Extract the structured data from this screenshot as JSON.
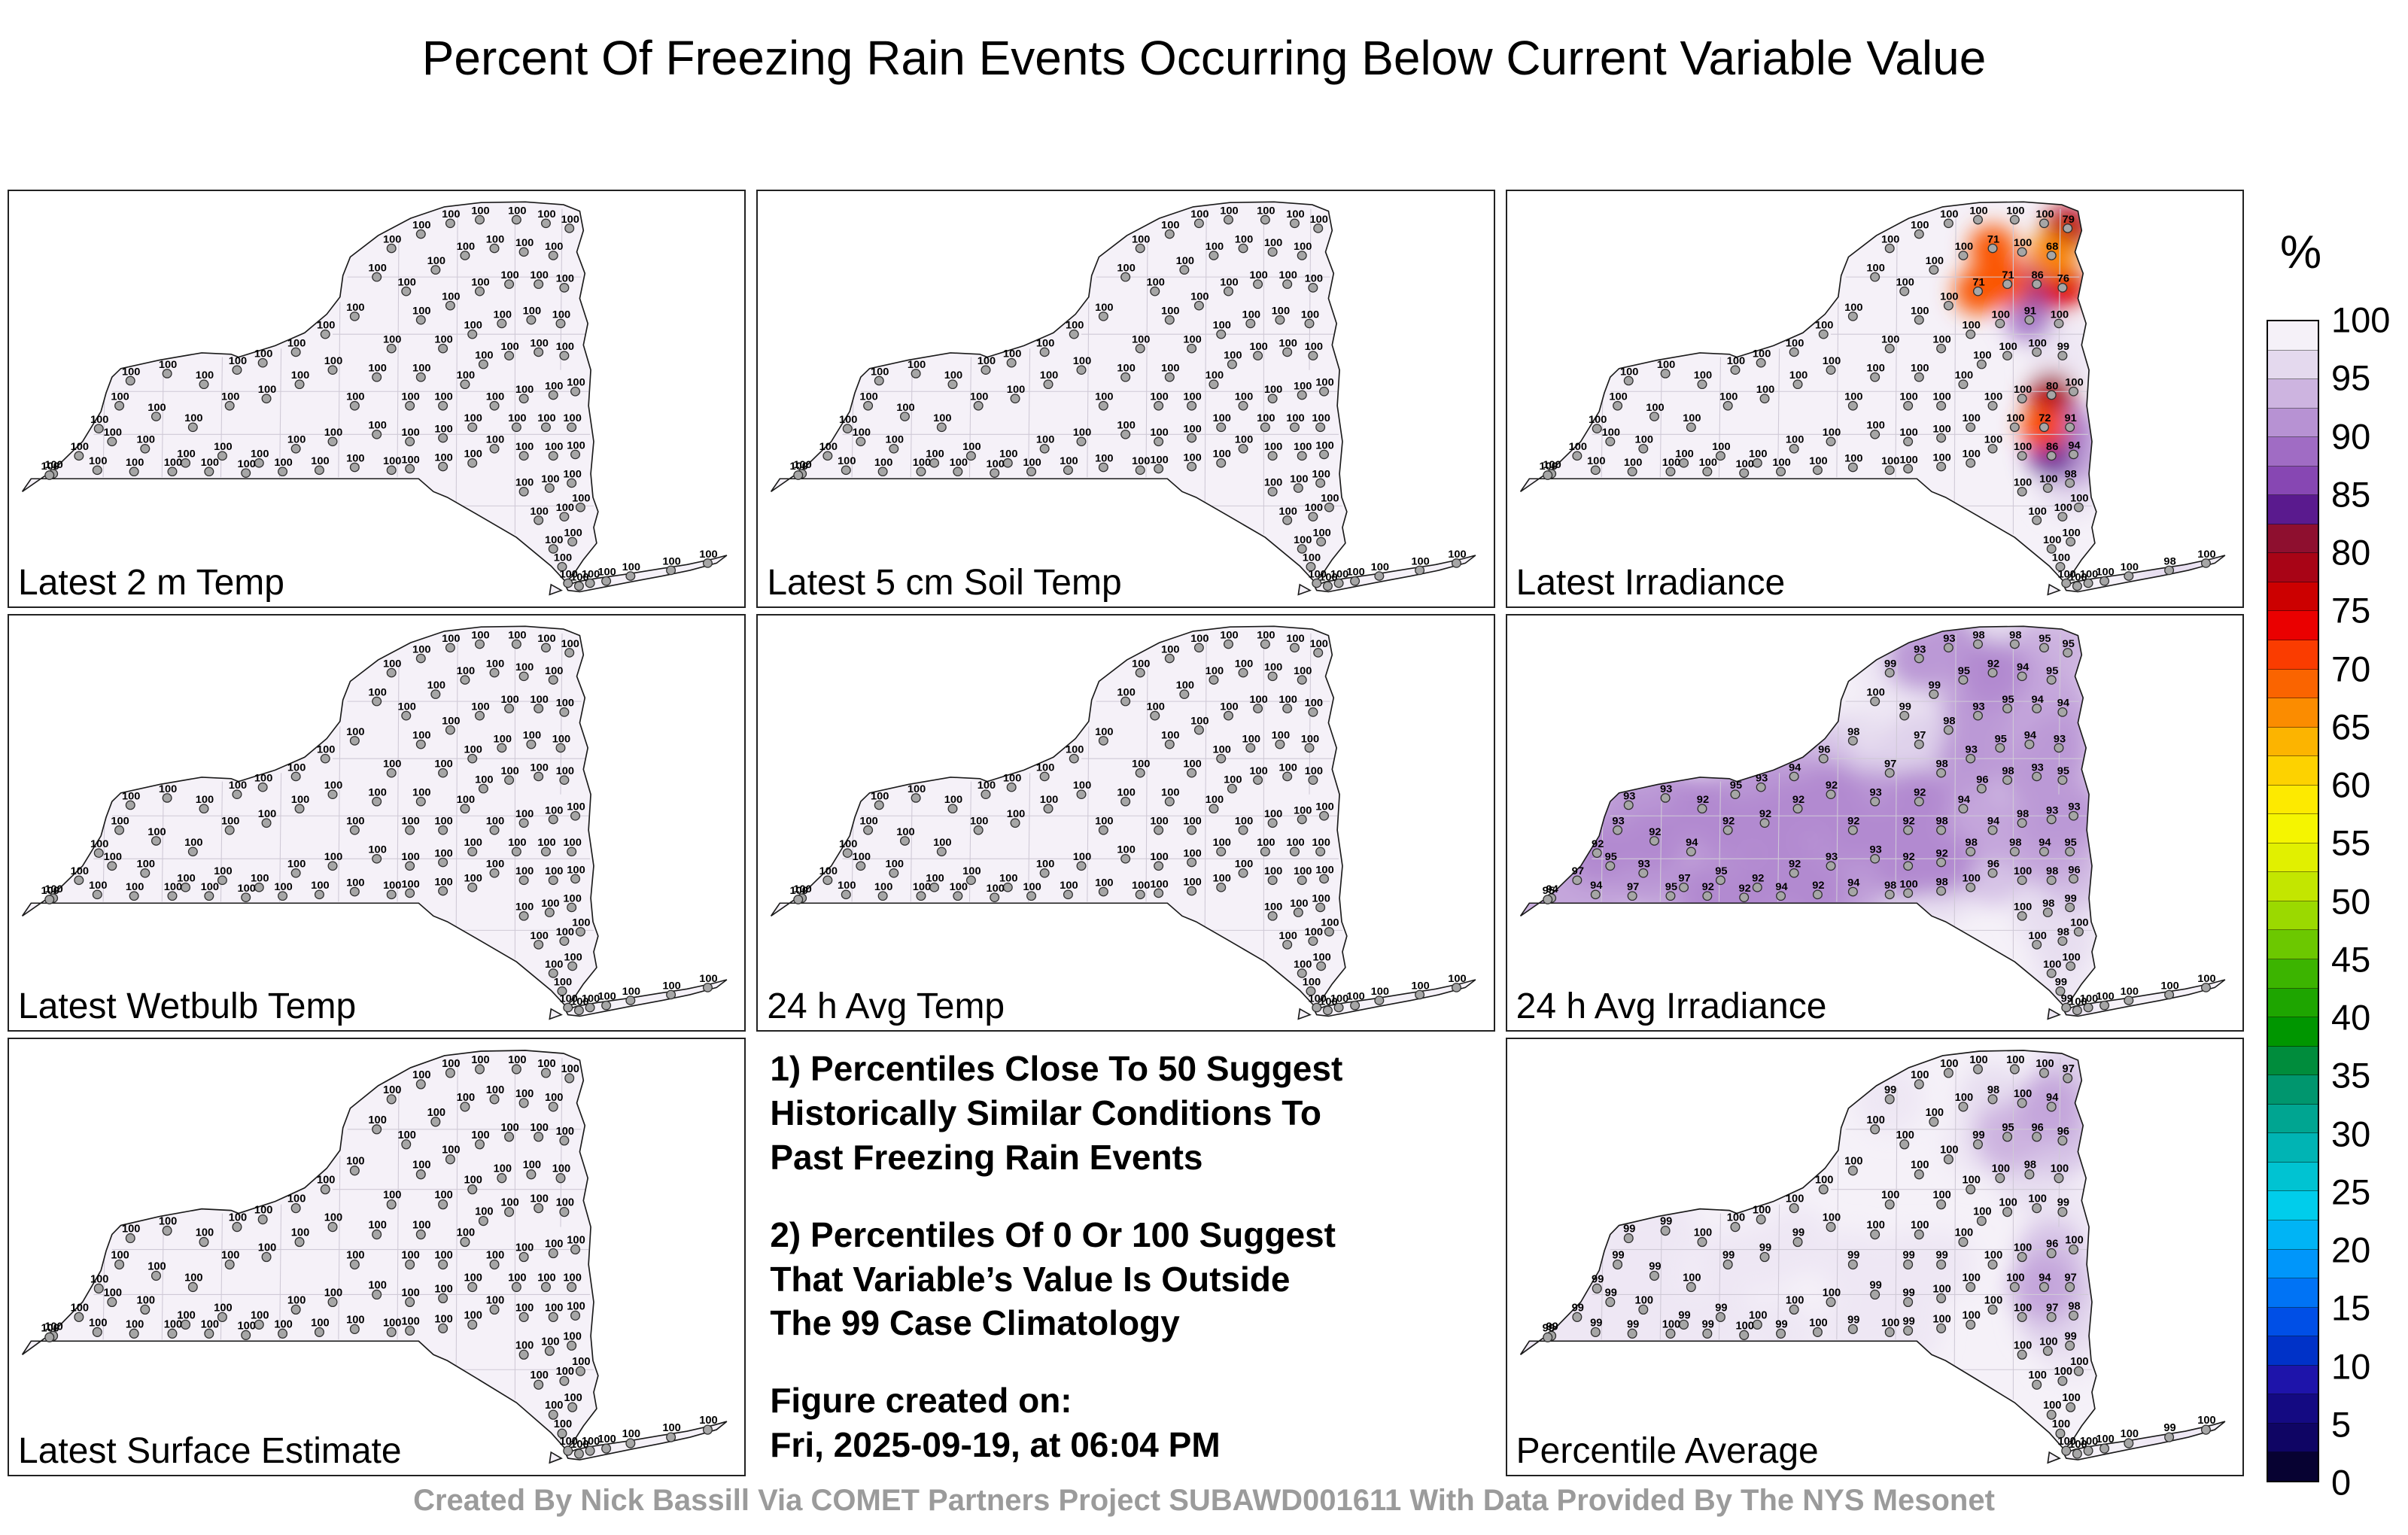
{
  "title": "Percent Of Freezing Rain Events Occurring Below Current Variable Value",
  "footer": "Created By Nick Bassill Via COMET Partners Project SUBAWD001611 With Data Provided By The NYS Mesonet",
  "notes": {
    "note1": "1) Percentiles Close To 50 Suggest\nHistorically Similar Conditions To\nPast Freezing Rain Events",
    "note2": "2) Percentiles Of 0 Or 100 Suggest\nThat Variable’s Value Is Outside\nThe 99 Case Climatology",
    "created": "Figure created on:\nFri, 2025-09-19, at 06:04 PM"
  },
  "colorbar": {
    "unit": "%",
    "ticks": [
      100,
      95,
      90,
      85,
      80,
      75,
      70,
      65,
      60,
      55,
      50,
      45,
      40,
      35,
      30,
      25,
      20,
      15,
      10,
      5,
      0
    ],
    "stops": [
      {
        "v": 100,
        "c": "#f5f1f8"
      },
      {
        "v": 97.5,
        "c": "#e4d9ee"
      },
      {
        "v": 95,
        "c": "#cdb4e0"
      },
      {
        "v": 92.5,
        "c": "#b792d3"
      },
      {
        "v": 90,
        "c": "#a06cc4"
      },
      {
        "v": 87.5,
        "c": "#8747b3"
      },
      {
        "v": 85,
        "c": "#5a1a8e"
      },
      {
        "v": 82.5,
        "c": "#8e0f2f"
      },
      {
        "v": 80,
        "c": "#a80416"
      },
      {
        "v": 77.5,
        "c": "#cc0000"
      },
      {
        "v": 75,
        "c": "#ea0000"
      },
      {
        "v": 72.5,
        "c": "#fa3c00"
      },
      {
        "v": 70,
        "c": "#fa6400"
      },
      {
        "v": 67.5,
        "c": "#fb8c00"
      },
      {
        "v": 65,
        "c": "#fcb400"
      },
      {
        "v": 62.5,
        "c": "#fdd200"
      },
      {
        "v": 60,
        "c": "#fdea00"
      },
      {
        "v": 57.5,
        "c": "#f5f500"
      },
      {
        "v": 55,
        "c": "#e1f000"
      },
      {
        "v": 52.5,
        "c": "#c3e600"
      },
      {
        "v": 50,
        "c": "#9bd900"
      },
      {
        "v": 47.5,
        "c": "#6cc800"
      },
      {
        "v": 45,
        "c": "#3cb400"
      },
      {
        "v": 42.5,
        "c": "#1ea500"
      },
      {
        "v": 40,
        "c": "#009600"
      },
      {
        "v": 37.5,
        "c": "#008c3c"
      },
      {
        "v": 35,
        "c": "#00966e"
      },
      {
        "v": 32.5,
        "c": "#00a591"
      },
      {
        "v": 30,
        "c": "#00b4b4"
      },
      {
        "v": 27.5,
        "c": "#00c3d2"
      },
      {
        "v": 25,
        "c": "#00cdeb"
      },
      {
        "v": 22.5,
        "c": "#00b4f5"
      },
      {
        "v": 20,
        "c": "#0096fa"
      },
      {
        "v": 17.5,
        "c": "#0073f5"
      },
      {
        "v": 15,
        "c": "#004fe6"
      },
      {
        "v": 12.5,
        "c": "#0032c8"
      },
      {
        "v": 10,
        "c": "#1e14aa"
      },
      {
        "v": 7.5,
        "c": "#140a82"
      },
      {
        "v": 5,
        "c": "#0f0564"
      },
      {
        "v": 2.5,
        "c": "#070232"
      },
      {
        "v": 0,
        "c": "#000000"
      }
    ]
  },
  "chart_data": {
    "type": "heatmap",
    "description": "Seven New York State station maps of freezing-rain-event percentiles (values are percent of events below current variable value at each NYS Mesonet station).",
    "stations": [
      [
        60,
        395
      ],
      [
        95,
        370
      ],
      [
        140,
        350
      ],
      [
        185,
        360
      ],
      [
        122,
        332
      ],
      [
        150,
        300
      ],
      [
        200,
        315
      ],
      [
        250,
        330
      ],
      [
        165,
        265
      ],
      [
        215,
        255
      ],
      [
        265,
        270
      ],
      [
        310,
        250
      ],
      [
        300,
        300
      ],
      [
        350,
        290
      ],
      [
        345,
        240
      ],
      [
        390,
        225
      ],
      [
        395,
        270
      ],
      [
        440,
        250
      ],
      [
        430,
        200
      ],
      [
        470,
        175
      ],
      [
        240,
        380
      ],
      [
        290,
        370
      ],
      [
        340,
        380
      ],
      [
        390,
        360
      ],
      [
        440,
        350
      ],
      [
        55,
        397
      ],
      [
        120,
        390
      ],
      [
        170,
        392
      ],
      [
        222,
        392
      ],
      [
        272,
        392
      ],
      [
        322,
        394
      ],
      [
        372,
        392
      ],
      [
        422,
        390
      ],
      [
        470,
        386
      ],
      [
        520,
        390
      ],
      [
        470,
        300
      ],
      [
        500,
        260
      ],
      [
        520,
        220
      ],
      [
        545,
        300
      ],
      [
        560,
        260
      ],
      [
        590,
        300
      ],
      [
        620,
        270
      ],
      [
        500,
        340
      ],
      [
        545,
        350
      ],
      [
        590,
        345
      ],
      [
        630,
        330
      ],
      [
        545,
        388
      ],
      [
        590,
        385
      ],
      [
        630,
        380
      ],
      [
        660,
        360
      ],
      [
        500,
        120
      ],
      [
        520,
        80
      ],
      [
        560,
        60
      ],
      [
        600,
        45
      ],
      [
        640,
        40
      ],
      [
        690,
        40
      ],
      [
        730,
        45
      ],
      [
        762,
        52
      ],
      [
        540,
        140
      ],
      [
        580,
        110
      ],
      [
        620,
        90
      ],
      [
        660,
        80
      ],
      [
        700,
        85
      ],
      [
        740,
        90
      ],
      [
        560,
        180
      ],
      [
        600,
        160
      ],
      [
        640,
        140
      ],
      [
        680,
        130
      ],
      [
        720,
        130
      ],
      [
        755,
        135
      ],
      [
        590,
        220
      ],
      [
        630,
        200
      ],
      [
        670,
        185
      ],
      [
        710,
        180
      ],
      [
        750,
        185
      ],
      [
        645,
        242
      ],
      [
        680,
        230
      ],
      [
        720,
        225
      ],
      [
        755,
        230
      ],
      [
        660,
        300
      ],
      [
        700,
        290
      ],
      [
        740,
        285
      ],
      [
        770,
        280
      ],
      [
        690,
        330
      ],
      [
        730,
        330
      ],
      [
        765,
        330
      ],
      [
        700,
        370
      ],
      [
        740,
        370
      ],
      [
        770,
        368
      ],
      [
        700,
        420
      ],
      [
        735,
        415
      ],
      [
        765,
        408
      ],
      [
        720,
        460
      ],
      [
        755,
        455
      ],
      [
        777,
        442
      ],
      [
        740,
        500
      ],
      [
        766,
        490
      ],
      [
        752,
        525
      ],
      [
        760,
        548
      ],
      [
        775,
        552
      ],
      [
        790,
        548
      ],
      [
        812,
        545
      ],
      [
        845,
        538
      ],
      [
        900,
        530
      ],
      [
        950,
        520
      ]
    ],
    "panels": [
      {
        "label": "Latest 2 m Temp",
        "default": 100,
        "overrides": {}
      },
      {
        "label": "Latest 5 cm Soil Temp",
        "default": 100,
        "overrides": {}
      },
      {
        "label": "Latest Irradiance",
        "default": 100,
        "overrides": {
          "57": 79,
          "61": 71,
          "63": 68,
          "66": 71,
          "67": 71,
          "68": 86,
          "69": 76,
          "73": 91,
          "78": 99,
          "81": 80,
          "84": 72,
          "85": 91,
          "87": 86,
          "88": 94,
          "91": 98,
          "103": 98
        }
      },
      {
        "label": "Latest Wetbulb Temp",
        "default": 100,
        "overrides": {}
      },
      {
        "label": "24 h Avg Temp",
        "default": 100,
        "overrides": {}
      },
      {
        "label": "24 h Avg Irradiance",
        "default": 100,
        "overrides": {
          "0": 94,
          "1": 97,
          "2": 95,
          "3": 93,
          "4": 92,
          "5": 93,
          "6": 92,
          "7": 94,
          "8": 93,
          "9": 93,
          "10": 92,
          "11": 95,
          "12": 92,
          "13": 92,
          "14": 93,
          "15": 94,
          "16": 92,
          "17": 92,
          "18": 96,
          "19": 98,
          "20": 97,
          "21": 95,
          "22": 92,
          "23": 92,
          "24": 93,
          "25": 95,
          "26": 94,
          "27": 97,
          "28": 95,
          "29": 92,
          "30": 92,
          "31": 94,
          "32": 92,
          "33": 94,
          "34": 98,
          "35": 92,
          "36": 93,
          "37": 97,
          "38": 92,
          "39": 92,
          "40": 98,
          "41": 94,
          "42": 93,
          "43": 92,
          "44": 92,
          "45": 98,
          "47": 98,
          "49": 96,
          "51": 99,
          "52": 93,
          "53": 93,
          "54": 98,
          "55": 98,
          "56": 95,
          "57": 95,
          "58": 99,
          "59": 99,
          "60": 95,
          "61": 92,
          "62": 94,
          "63": 95,
          "64": 97,
          "65": 98,
          "66": 93,
          "67": 95,
          "68": 94,
          "69": 94,
          "70": 98,
          "71": 93,
          "72": 95,
          "73": 94,
          "74": 93,
          "75": 96,
          "76": 98,
          "77": 93,
          "78": 95,
          "79": 94,
          "80": 98,
          "81": 93,
          "82": 93,
          "83": 98,
          "84": 94,
          "85": 95,
          "87": 98,
          "88": 96,
          "90": 98,
          "91": 99,
          "93": 98,
          "97": 99,
          "98": 99
        }
      },
      {
        "label": "Latest Surface Estimate",
        "default": 100,
        "overrides": {}
      },
      {
        "label": "Percentile Average",
        "default": 100,
        "overrides": {
          "0": 99,
          "1": 99,
          "2": 99,
          "4": 99,
          "5": 99,
          "6": 99,
          "8": 99,
          "9": 99,
          "12": 99,
          "13": 99,
          "16": 99,
          "20": 99,
          "21": 99,
          "25": 99,
          "26": 99,
          "27": 99,
          "29": 99,
          "31": 99,
          "33": 99,
          "35": 99,
          "38": 99,
          "40": 99,
          "42": 99,
          "43": 99,
          "46": 99,
          "51": 99,
          "57": 97,
          "61": 98,
          "63": 94,
          "66": 99,
          "67": 95,
          "68": 96,
          "69": 96,
          "73": 98,
          "78": 99,
          "81": 96,
          "84": 94,
          "85": 97,
          "87": 97,
          "88": 98,
          "91": 99,
          "103": 99
        }
      }
    ]
  }
}
